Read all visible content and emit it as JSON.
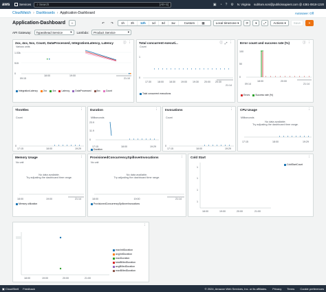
{
  "topnav": {
    "logo": "aws",
    "services": "Services",
    "search_placeholder": "Search",
    "search_shortcut": "[Alt+S]",
    "region": "N. Virginia",
    "account": "subham.soni@publicissapient.com @ 4361-0818-1220"
  },
  "breadcrumb": {
    "home": "CloudWatch",
    "dashboards": "Dashboards",
    "current": "Application-Dashboard",
    "autosave": "Autosave: Off"
  },
  "toolbar": {
    "title": "Application-Dashboard",
    "ranges": [
      "1h",
      "3h",
      "12h",
      "1d",
      "3d",
      "1w"
    ],
    "selected_range": "12h",
    "custom": "Custom",
    "timezone": "Local timezone",
    "actions": "Actions",
    "save": "Save",
    "add": "+"
  },
  "variables": {
    "api_label": "API Gateway:",
    "api_value": "Typeahead Service",
    "lambda_label": "Lambda:",
    "lambda_value": "Product Service"
  },
  "widgets": {
    "w1": {
      "title": "2xx, 4xx, 5xx, Count, DataProcessed, IntegrationLatency, Latency",
      "unit": "Various units",
      "yticks": [
        "1.03k",
        "515",
        "0"
      ],
      "xticks": [
        "18:00",
        "19:00",
        "09:15",
        "21:10"
      ],
      "legend": [
        {
          "name": "IntegrationLatency",
          "color": "#1f77b4"
        },
        {
          "name": "2xx",
          "color": "#ff7f0e"
        },
        {
          "name": "4xx",
          "color": "#2ca02c"
        },
        {
          "name": "Latency",
          "color": "#d62728"
        },
        {
          "name": "DataProcessed",
          "color": "#9467bd"
        },
        {
          "name": "5xx",
          "color": "#8c564b"
        },
        {
          "name": "Count",
          "color": "#e377c2"
        }
      ]
    },
    "w2": {
      "title": "Total concurrent executi...",
      "unit": "Count",
      "yticks": [
        "1",
        "0"
      ],
      "xticks": [
        "17:30",
        "18:00",
        "18:30",
        "19:00",
        "19:30",
        "20:00",
        "20:30",
        "21:14"
      ],
      "legend": [
        {
          "name": "Total concurrent executions",
          "color": "#1f77b4"
        }
      ]
    },
    "w3": {
      "title": "Error count and success rate (%)",
      "yticks": [
        "100",
        "50",
        "0"
      ],
      "xticks": [
        "18:00",
        "20:00",
        "09:14",
        "21:14"
      ],
      "legend": [
        {
          "name": "Errors",
          "color": "#d62728"
        },
        {
          "name": "Success rate (%)",
          "color": "#2ca02c"
        }
      ]
    },
    "w4": {
      "title": "Throttles",
      "unit": "Count",
      "yticks": [
        "0"
      ],
      "xticks": [
        "17:15",
        "18:00",
        "19:29"
      ]
    },
    "w5": {
      "title": "Duration",
      "unit": "Milliseconds",
      "yticks": [
        "23.9",
        "11.9",
        "0"
      ],
      "xticks": [
        "17:15",
        "18:00",
        "19:29"
      ],
      "legend": [
        {
          "name": "Duration",
          "color": "#1f77b4"
        }
      ]
    },
    "w6": {
      "title": "Invocations",
      "unit": "Count",
      "yticks": [
        "0"
      ],
      "xticks": [
        "17:15",
        "18:00",
        "19:29"
      ]
    },
    "w7": {
      "title": "CPU Usage",
      "unit": "Milliseconds",
      "nodata_1": "No data available.",
      "nodata_2": "Try adjusting the dashboard time range.",
      "xticks": [
        "17:15",
        "18:00",
        "19:29"
      ]
    },
    "w8": {
      "title": "Memory Usage",
      "unit": "No unit",
      "nodata_1": "No data available.",
      "nodata_2": "Try adjusting the dashboard time range.",
      "xticks": [
        "18:00",
        "19:00",
        "21:14"
      ],
      "legend": [
        {
          "name": "Memory utilization",
          "color": "#1f77b4"
        }
      ]
    },
    "w9": {
      "title": "ProvisionedConcurrencySpilloverInvocations",
      "unit": "No unit",
      "nodata_1": "No data available.",
      "nodata_2": "Try adjusting the dashboard time range.",
      "xticks": [
        "18:00",
        "19:00",
        "21:14"
      ],
      "legend": [
        {
          "name": "ProvisionedConcurrencySpilloverInvocations",
          "color": "#1f77b4"
        }
      ]
    },
    "w10": {
      "title": "Cold Start",
      "yticks": [
        "1",
        "1",
        "1",
        "1"
      ],
      "xticks": [
        "18:00",
        "19:00",
        "20:00",
        "21:00"
      ],
      "legend": [
        {
          "name": "ColdStartCount",
          "color": "#1f77b4"
        }
      ]
    },
    "w11": {
      "xticks": [
        "18:00",
        "19:00",
        "20:00",
        "21:00"
      ],
      "legend": [
        {
          "name": "maxInitDuration",
          "color": "#1f77b4"
        },
        {
          "name": "avgInitDuration",
          "color": "#ff7f0e"
        },
        {
          "name": "maxDuration",
          "color": "#2ca02c"
        },
        {
          "name": "totalBilledDuration",
          "color": "#d62728"
        },
        {
          "name": "avgBilledDuration",
          "color": "#9467bd"
        },
        {
          "name": "maxBilledDuration",
          "color": "#8c564b"
        }
      ]
    }
  },
  "footer": {
    "cloudshell": "CloudShell",
    "feedback": "Feedback",
    "copyright": "© 2024, Amazon Web Services, Inc. or its affiliates.",
    "privacy": "Privacy",
    "terms": "Terms",
    "cookies": "Cookie preferences"
  }
}
